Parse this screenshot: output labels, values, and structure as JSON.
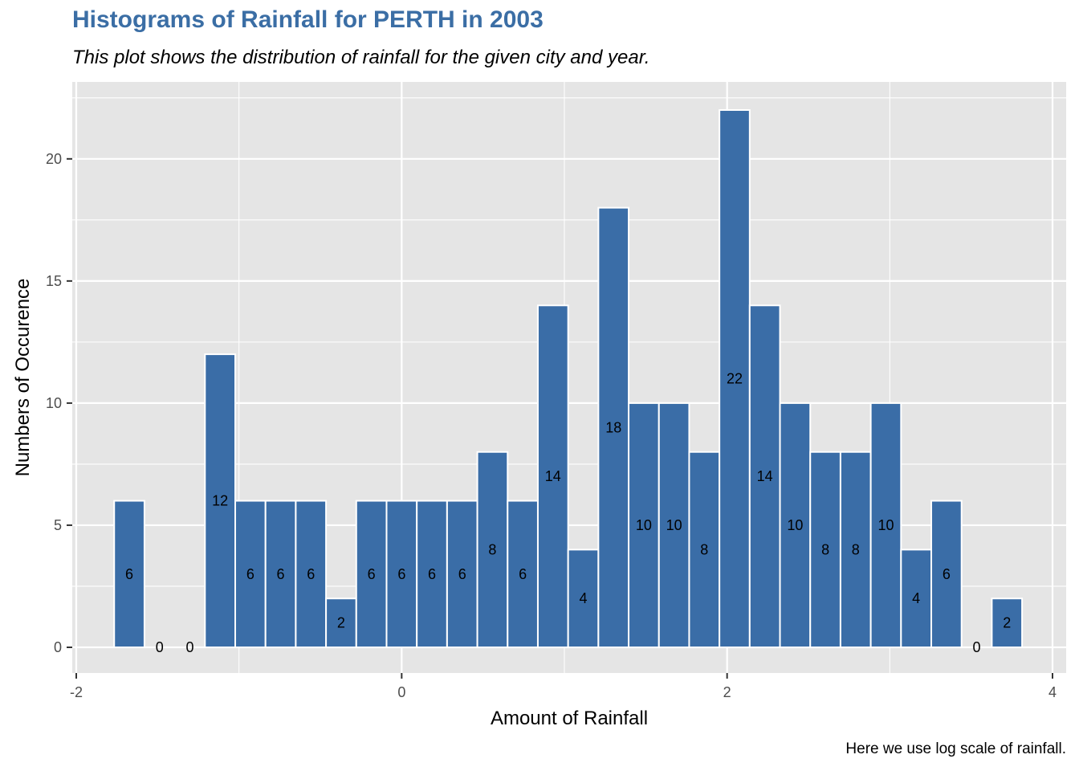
{
  "title": "Histograms of Rainfall for PERTH in 2003",
  "subtitle": "This plot shows the distribution of rainfall for the given city and year.",
  "caption": "Here we use log scale of rainfall.",
  "colors": {
    "bar_fill": "#3a6da7",
    "bar_outline": "#ffffff",
    "panel_background": "#e5e5e5",
    "grid": "#ffffff",
    "title": "#3b6ea5"
  },
  "chart_data": {
    "type": "bar",
    "title": "Histograms of Rainfall for PERTH in 2003",
    "subtitle": "This plot shows the distribution of rainfall for the given city and year.",
    "xlabel": "Amount of Rainfall",
    "ylabel": "Numbers of Occurence",
    "xlim": [
      -2.0,
      4.0
    ],
    "ylim": [
      0,
      22
    ],
    "x_ticks": [
      -2,
      0,
      2,
      4
    ],
    "x_tick_labels": [
      "-2",
      "0",
      "2",
      "4"
    ],
    "y_ticks": [
      0,
      5,
      10,
      15,
      20
    ],
    "y_tick_labels": [
      "0",
      "5",
      "10",
      "15",
      "20"
    ],
    "grid": true,
    "bin_width": 0.186,
    "bin_centers": [
      -1.674,
      -1.488,
      -1.302,
      -1.116,
      -0.93,
      -0.744,
      -0.558,
      -0.372,
      -0.186,
      0.0,
      0.186,
      0.372,
      0.558,
      0.744,
      0.93,
      1.116,
      1.302,
      1.488,
      1.674,
      1.86,
      2.046,
      2.232,
      2.418,
      2.604,
      2.79,
      2.976,
      3.162,
      3.348,
      3.534,
      3.72
    ],
    "values": [
      6,
      0,
      0,
      12,
      6,
      6,
      6,
      2,
      6,
      6,
      6,
      6,
      8,
      6,
      14,
      4,
      18,
      10,
      10,
      8,
      22,
      14,
      10,
      8,
      8,
      10,
      4,
      6,
      0,
      2
    ],
    "data_labels": [
      "6",
      "0",
      "0",
      "12",
      "6",
      "6",
      "6",
      "2",
      "6",
      "6",
      "6",
      "6",
      "8",
      "6",
      "14",
      "4",
      "18",
      "10",
      "10",
      "8",
      "22",
      "14",
      "10",
      "8",
      "8",
      "10",
      "4",
      "6",
      "0",
      "2"
    ]
  }
}
